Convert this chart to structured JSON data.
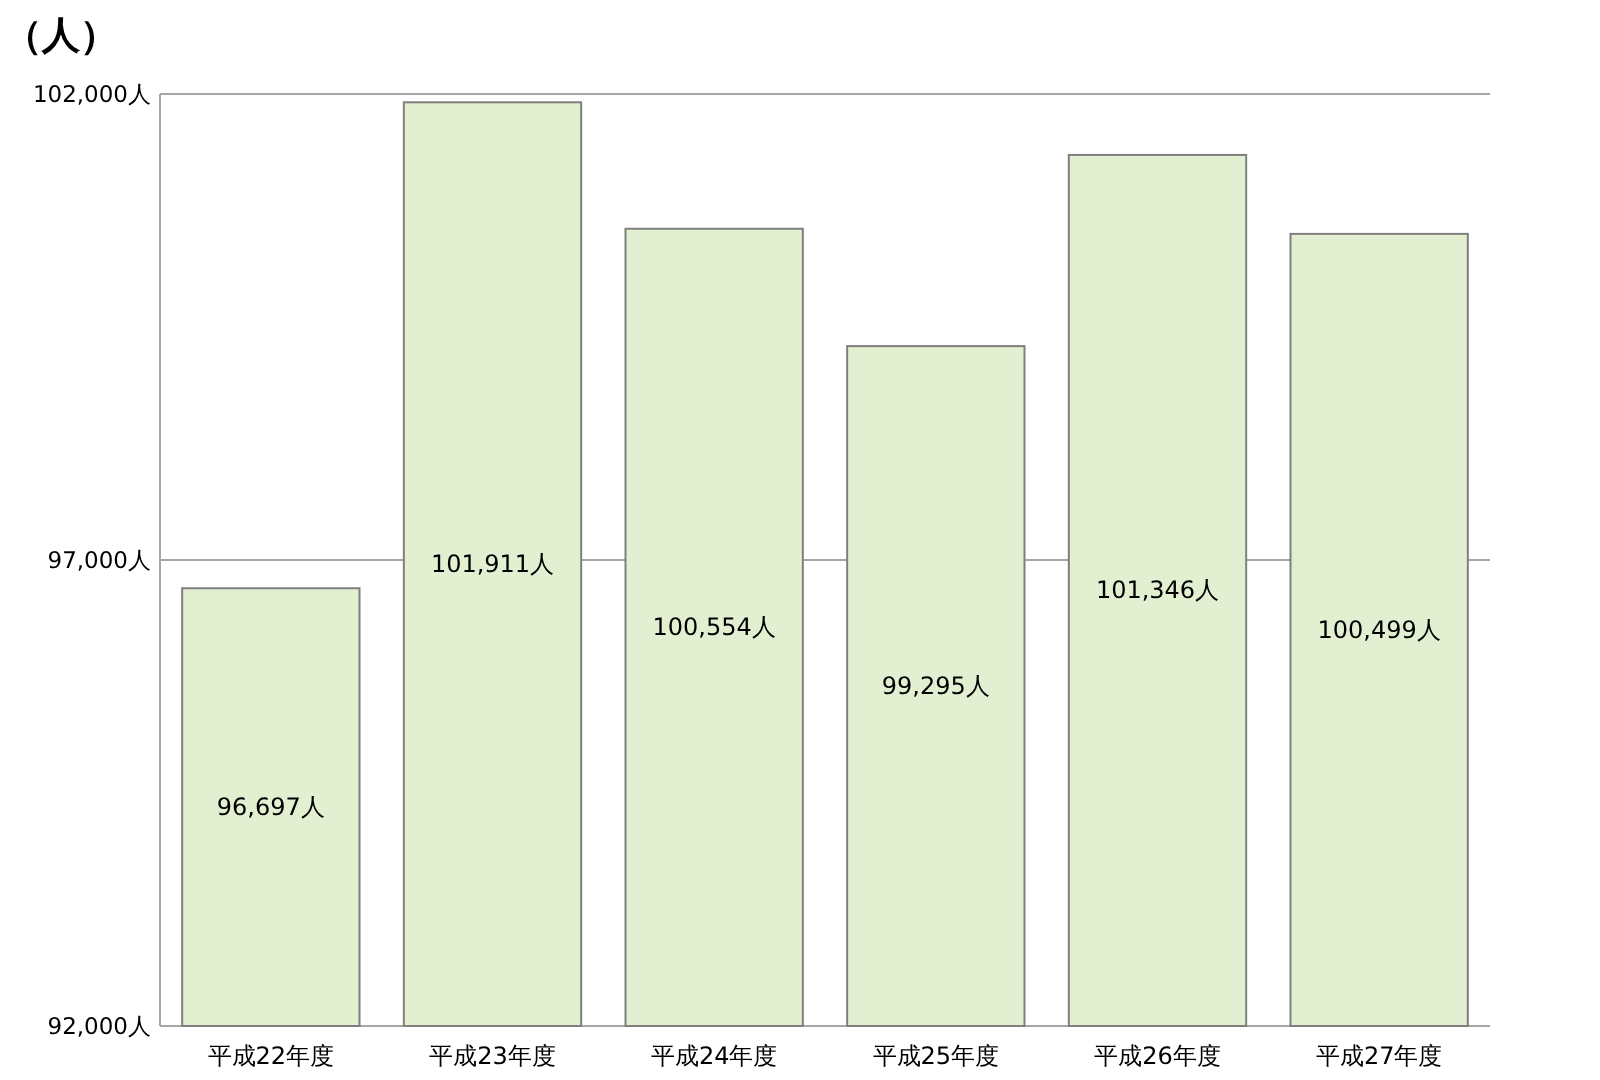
{
  "chart_data": {
    "type": "bar",
    "ylabel": "（人）",
    "categories": [
      "平成22年度",
      "平成23年度",
      "平成24年度",
      "平成25年度",
      "平成26年度",
      "平成27年度"
    ],
    "values": [
      96697,
      101911,
      100554,
      99295,
      101346,
      100499
    ],
    "value_labels": [
      "96,697人",
      "101,911人",
      "100,554人",
      "99,295人",
      "101,346人",
      "100,499人"
    ],
    "color": "#e3efd1",
    "ylim": [
      92000,
      102000
    ],
    "yticks": [
      {
        "value": 92000,
        "label": "92,000人"
      },
      {
        "value": 97000,
        "label": "97,000人"
      },
      {
        "value": 102000,
        "label": "102,000人"
      }
    ],
    "grid": "y"
  }
}
